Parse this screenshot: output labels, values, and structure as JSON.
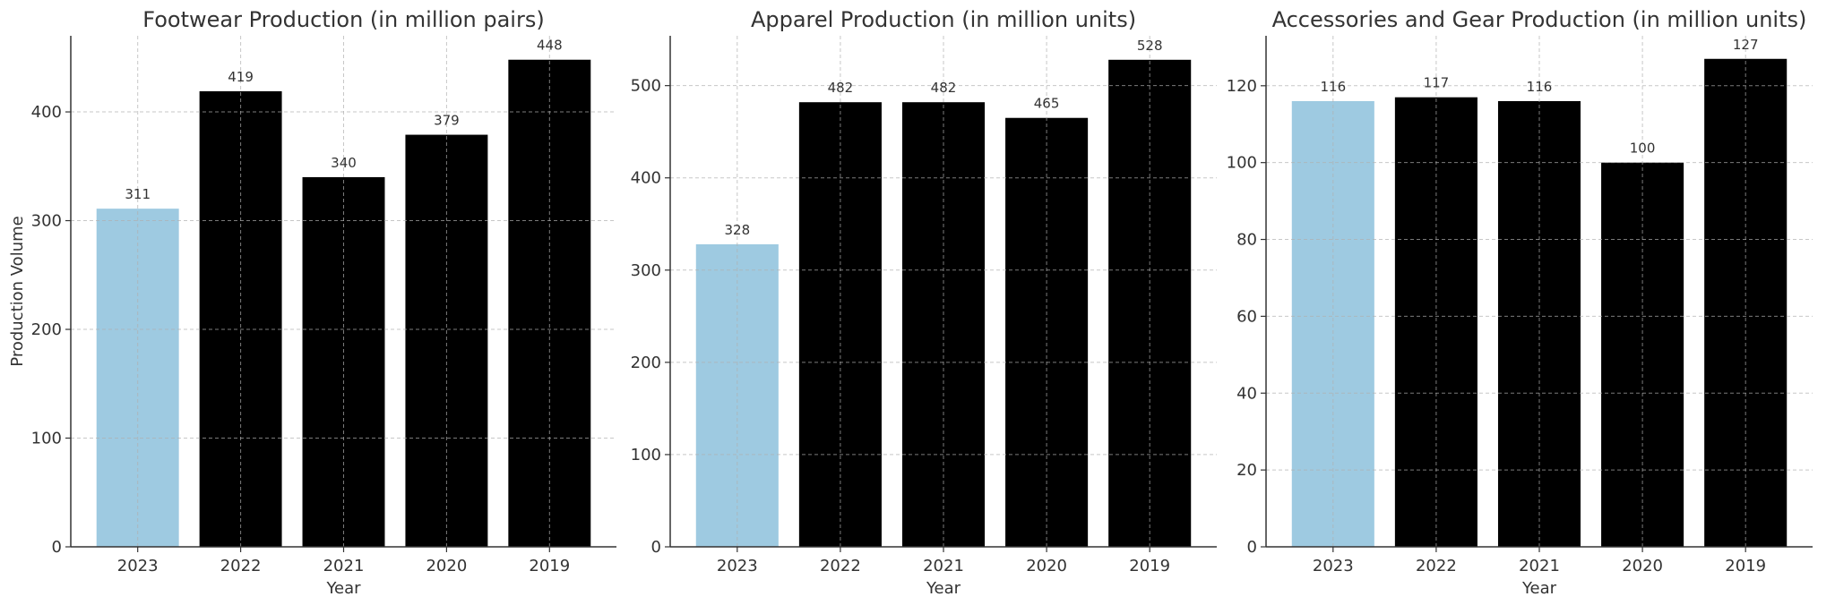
{
  "chart_data": [
    {
      "type": "bar",
      "title": "Footwear Production (in million pairs)",
      "xlabel": "Year",
      "ylabel": "Production Volume",
      "categories": [
        "2023",
        "2022",
        "2021",
        "2020",
        "2019"
      ],
      "values": [
        311,
        419,
        340,
        379,
        448
      ],
      "data_labels": [
        "311",
        "419",
        "340",
        "379",
        "448"
      ],
      "yticks": [
        0,
        100,
        200,
        300,
        400
      ],
      "ytick_labels": [
        "0",
        "100",
        "200",
        "300",
        "400"
      ],
      "ylim": [
        0,
        470
      ],
      "grid": true,
      "bar_colors": [
        "#9ecae1",
        "#000000",
        "#000000",
        "#000000",
        "#000000"
      ]
    },
    {
      "type": "bar",
      "title": "Apparel Production (in million units)",
      "xlabel": "Year",
      "ylabel": "",
      "categories": [
        "2023",
        "2022",
        "2021",
        "2020",
        "2019"
      ],
      "values": [
        328,
        482,
        482,
        465,
        528
      ],
      "data_labels": [
        "328",
        "482",
        "482",
        "465",
        "528"
      ],
      "yticks": [
        0,
        100,
        200,
        300,
        400,
        500
      ],
      "ytick_labels": [
        "0",
        "100",
        "200",
        "300",
        "400",
        "500"
      ],
      "ylim": [
        0,
        554
      ],
      "grid": true,
      "bar_colors": [
        "#9ecae1",
        "#000000",
        "#000000",
        "#000000",
        "#000000"
      ]
    },
    {
      "type": "bar",
      "title": "Accessories and Gear Production (in million units)",
      "xlabel": "Year",
      "ylabel": "",
      "categories": [
        "2023",
        "2022",
        "2021",
        "2020",
        "2019"
      ],
      "values": [
        116,
        117,
        116,
        100,
        127
      ],
      "data_labels": [
        "116",
        "117",
        "116",
        "100",
        "127"
      ],
      "yticks": [
        0,
        20,
        40,
        60,
        80,
        100,
        120
      ],
      "ytick_labels": [
        "0",
        "20",
        "40",
        "60",
        "80",
        "100",
        "120"
      ],
      "ylim": [
        0,
        133
      ],
      "grid": true,
      "bar_colors": [
        "#9ecae1",
        "#000000",
        "#000000",
        "#000000",
        "#000000"
      ]
    }
  ]
}
